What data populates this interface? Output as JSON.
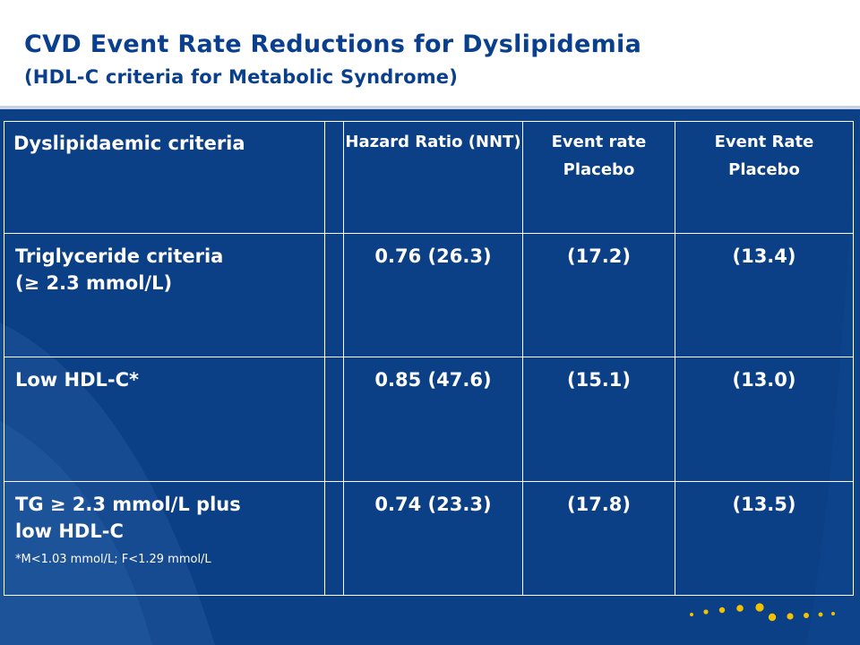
{
  "slide": {
    "title": "CVD Event Rate Reductions for Dyslipidemia",
    "subtitle": "(HDL-C criteria for Metabolic Syndrome)",
    "colors": {
      "background": "#0b3f86",
      "title": "#0a3f8e",
      "accent_dots": "#f2c200"
    }
  },
  "table": {
    "header": {
      "criteria": "Dyslipidaemic criteria",
      "hazard_ratio": "Hazard Ratio (NNT)",
      "event_rate_1_line1": "Event rate",
      "event_rate_1_line2": "Placebo",
      "event_rate_2_line1": "Event Rate",
      "event_rate_2_line2": "Placebo"
    },
    "rows": [
      {
        "label_line1": "Triglyceride criteria",
        "label_line2": "(≥ 2.3 mmol/L)",
        "hazard": "0.76 (26.3)",
        "rate1": "(17.2)",
        "rate2": "(13.4)"
      },
      {
        "label_line1": "Low HDL-C*",
        "hazard": "0.85 (47.6)",
        "rate1": "(15.1)",
        "rate2": "(13.0)"
      },
      {
        "label_line1": "TG ≥ 2.3 mmol/L plus",
        "label_line2": "low HDL-C",
        "footnote": "*M<1.03 mmol/L; F<1.29 mmol/L",
        "hazard": "0.74 (23.3)",
        "rate1": "(17.8)",
        "rate2": "(13.5)"
      }
    ]
  }
}
